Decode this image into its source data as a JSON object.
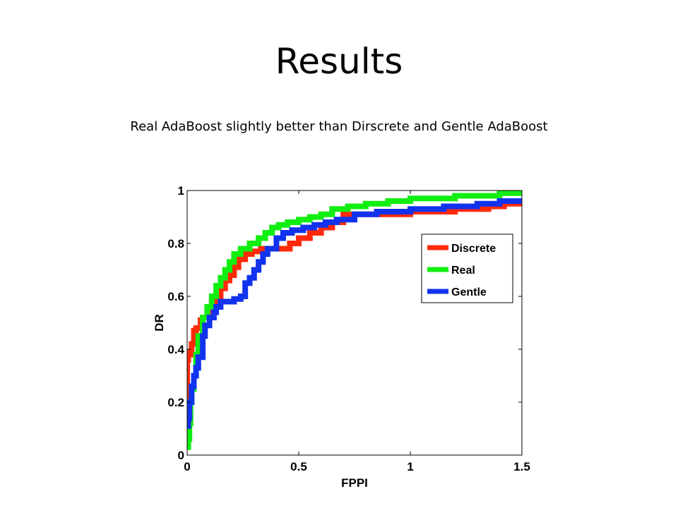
{
  "slide": {
    "title": "Results",
    "subtitle": "Real AdaBoost slightly better than Dirscrete and Gentle AdaBoost"
  },
  "chart_data": {
    "type": "line",
    "title": "",
    "xlabel": "FPPI",
    "ylabel": "DR",
    "xlim": [
      0,
      1.5
    ],
    "ylim": [
      0,
      1
    ],
    "xticks": [
      0,
      0.5,
      1,
      1.5
    ],
    "xtick_labels": [
      "0",
      "0.5",
      "1",
      "1.5"
    ],
    "yticks": [
      0,
      0.2,
      0.4,
      0.6,
      0.8,
      1
    ],
    "ytick_labels": [
      "0",
      "0.2",
      "0.4",
      "0.6",
      "0.8",
      "1"
    ],
    "grid": false,
    "legend_position": "top-right",
    "series": [
      {
        "name": "Discrete",
        "color": "#ff2a0a",
        "x": [
          0,
          0,
          0.005,
          0.015,
          0.02,
          0.03,
          0.04,
          0.06,
          0.07,
          0.09,
          0.11,
          0.13,
          0.15,
          0.17,
          0.19,
          0.21,
          0.23,
          0.26,
          0.29,
          0.33,
          0.36,
          0.42,
          0.46,
          0.5,
          0.55,
          0.6,
          0.65,
          0.7,
          0.8,
          0.9,
          1.0,
          1.2,
          1.35,
          1.42,
          1.5
        ],
        "y": [
          0.15,
          0.36,
          0.38,
          0.39,
          0.42,
          0.47,
          0.48,
          0.51,
          0.52,
          0.54,
          0.58,
          0.6,
          0.63,
          0.66,
          0.68,
          0.71,
          0.74,
          0.76,
          0.77,
          0.78,
          0.78,
          0.78,
          0.8,
          0.82,
          0.84,
          0.86,
          0.88,
          0.91,
          0.91,
          0.91,
          0.92,
          0.93,
          0.94,
          0.95,
          0.95
        ]
      },
      {
        "name": "Real",
        "color": "#11ee11",
        "x": [
          0,
          0.005,
          0.01,
          0.015,
          0.02,
          0.03,
          0.04,
          0.05,
          0.07,
          0.09,
          0.11,
          0.13,
          0.15,
          0.17,
          0.19,
          0.21,
          0.24,
          0.28,
          0.32,
          0.35,
          0.38,
          0.41,
          0.45,
          0.5,
          0.55,
          0.6,
          0.65,
          0.72,
          0.8,
          0.9,
          1.0,
          1.2,
          1.4,
          1.5
        ],
        "y": [
          0.03,
          0.06,
          0.12,
          0.2,
          0.25,
          0.3,
          0.38,
          0.45,
          0.52,
          0.56,
          0.6,
          0.64,
          0.67,
          0.7,
          0.73,
          0.76,
          0.78,
          0.8,
          0.82,
          0.84,
          0.86,
          0.87,
          0.88,
          0.89,
          0.9,
          0.91,
          0.93,
          0.94,
          0.95,
          0.96,
          0.97,
          0.98,
          0.99,
          0.99
        ]
      },
      {
        "name": "Gentle",
        "color": "#1133ee",
        "x": [
          0,
          0.005,
          0.01,
          0.02,
          0.03,
          0.04,
          0.05,
          0.07,
          0.08,
          0.1,
          0.12,
          0.13,
          0.15,
          0.17,
          0.21,
          0.23,
          0.24,
          0.26,
          0.28,
          0.3,
          0.32,
          0.34,
          0.36,
          0.4,
          0.43,
          0.47,
          0.52,
          0.57,
          0.62,
          0.67,
          0.75,
          0.85,
          1.0,
          1.15,
          1.3,
          1.4,
          1.5
        ],
        "y": [
          0.11,
          0.14,
          0.2,
          0.26,
          0.3,
          0.33,
          0.37,
          0.45,
          0.49,
          0.52,
          0.54,
          0.56,
          0.58,
          0.58,
          0.59,
          0.59,
          0.6,
          0.65,
          0.67,
          0.7,
          0.73,
          0.76,
          0.78,
          0.82,
          0.84,
          0.85,
          0.86,
          0.87,
          0.88,
          0.89,
          0.91,
          0.92,
          0.93,
          0.94,
          0.95,
          0.96,
          0.96
        ]
      }
    ]
  }
}
